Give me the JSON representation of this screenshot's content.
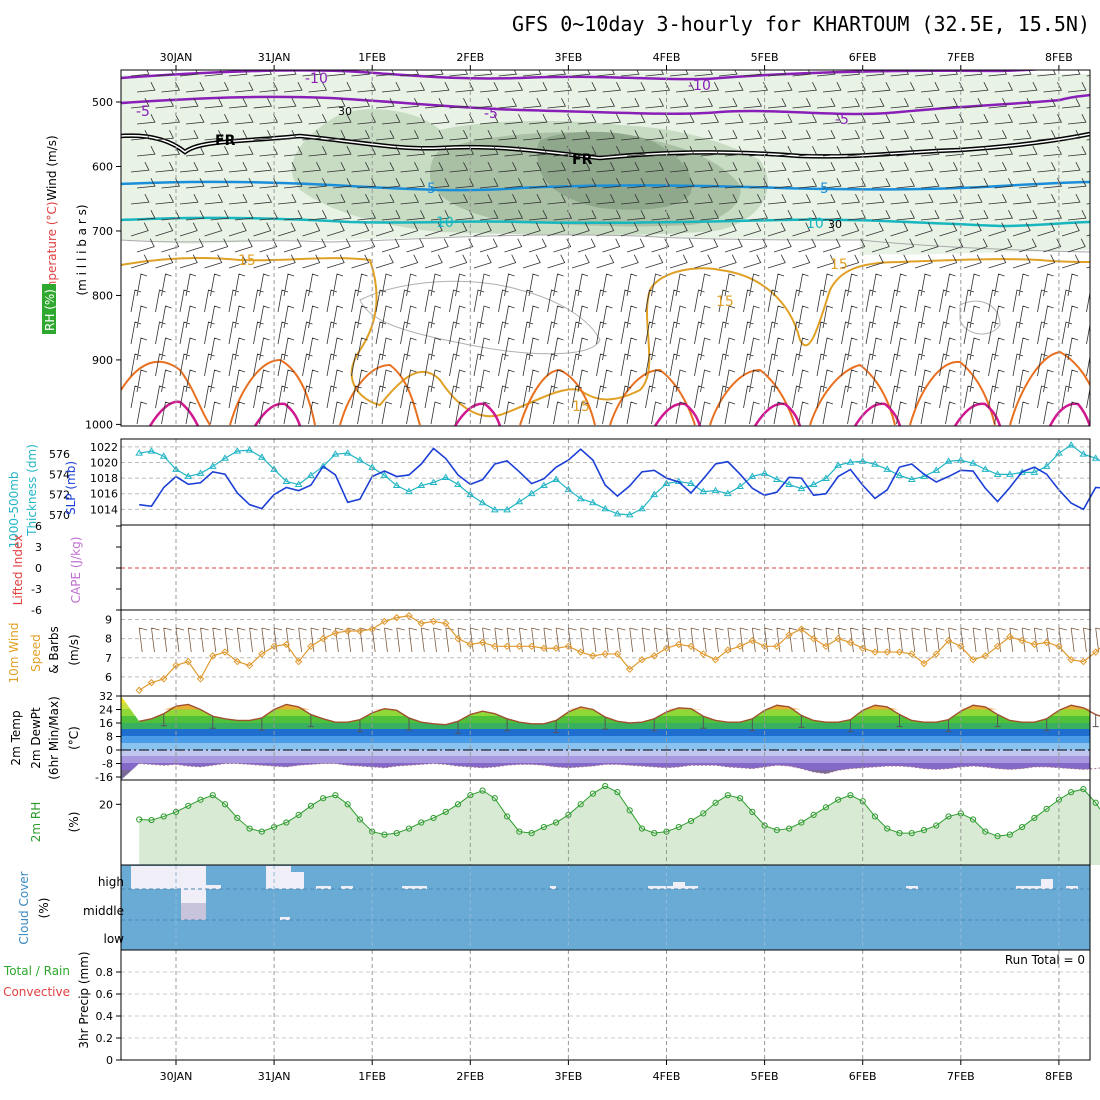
{
  "title": "GFS 0~10day 3-hourly for KHARTOUM (32.5E, 15.5N)",
  "date_labels": [
    "30JAN",
    "31JAN",
    "1FEB",
    "2FEB",
    "3FEB",
    "4FEB",
    "5FEB",
    "6FEB",
    "7FEB",
    "8FEB"
  ],
  "panels": {
    "upper": {
      "labels": [
        "Wind (m/s)",
        "Temperature (°C)",
        "RH (%)",
        "(m i l l i b a r s)"
      ],
      "pressure_levels": [
        500,
        600,
        700,
        800,
        900,
        1000
      ],
      "contour_labels": [
        "-10",
        "-5",
        "FR",
        "5",
        "10",
        "15",
        "30"
      ]
    },
    "slp": {
      "labels": [
        "1000-500mb",
        "Thickness (dm)",
        "SLP (mb)"
      ],
      "thickness_ticks": [
        570,
        572,
        574,
        576
      ],
      "slp_ticks": [
        1014,
        1016,
        1018,
        1020,
        1022
      ]
    },
    "cape": {
      "labels": [
        "Lifted Index",
        "CAPE (J/kg)"
      ],
      "ticks": [
        6,
        3,
        0,
        -3,
        -6
      ]
    },
    "wind10": {
      "labels": [
        "10m Wind",
        "Speed",
        "& Barbs",
        "(m/s)"
      ],
      "ticks": [
        6,
        7,
        8,
        9
      ]
    },
    "temp": {
      "labels": [
        "2m Temp",
        "2m DewPt",
        "(6hr Min/Max)",
        "(°C)"
      ],
      "ticks": [
        32,
        24,
        16,
        8,
        0,
        -8,
        -16
      ]
    },
    "rh": {
      "labels": [
        "2m RH",
        "(%)"
      ],
      "ticks": [
        20
      ]
    },
    "cloud": {
      "labels": [
        "Cloud Cover",
        "(%)"
      ],
      "levels": [
        "high",
        "middle",
        "low"
      ]
    },
    "precip": {
      "labels": [
        "Total / Rain",
        "Convective",
        "3hr Precip (mm)"
      ],
      "ticks": [
        0,
        0.2,
        0.4,
        0.6,
        0.8
      ],
      "run_total": "Run Total = 0"
    }
  },
  "colors": {
    "slp": "#1c3fd6",
    "thickness": "#22b5c5",
    "wind_speed": "#e09a30",
    "rh_line": "#2e9c2e",
    "cloud": "#6aabd6",
    "temp_line": "#a05030",
    "dewpt": "#a07090"
  },
  "chart_data": {
    "type": "line",
    "x_unit": "3-hourly steps from 29JAN 18Z (81 steps)",
    "series": [
      {
        "name": "SLP (mb)",
        "values": [
          1014.6,
          1014.4,
          1016.8,
          1018.2,
          1017.2,
          1017.4,
          1018.8,
          1018.5,
          1016.1,
          1014.6,
          1014.1,
          1015.9,
          1016.8,
          1016.4,
          1017.1,
          1019.5,
          1018.4,
          1014.9,
          1015.3,
          1018.2,
          1018.9,
          1018.2,
          1018.4,
          1019.8,
          1021.8,
          1020.5,
          1018.4,
          1017.2,
          1017.8,
          1019.8,
          1020.2,
          1018.8,
          1017.3,
          1017.9,
          1019.4,
          1020.3,
          1021.7,
          1020.3,
          1017.1,
          1015.7,
          1017.0,
          1018.8,
          1019.0,
          1018.0,
          1017.5,
          1016.1,
          1017.9,
          1019.8,
          1020.1,
          1018.5,
          1016.7,
          1015.8,
          1016.2,
          1018.1,
          1018.0,
          1015.8,
          1016.0,
          1018.2,
          1019.1,
          1017.1,
          1015.4,
          1016.5,
          1019.4,
          1019.8,
          1018.5,
          1017.5,
          1018.2,
          1019.0,
          1018.9,
          1016.7,
          1015.0,
          1016.8,
          1018.8,
          1019.4,
          1018.5,
          1016.5,
          1014.8,
          1014.0,
          1016.8,
          1016.7,
          1017.4
        ]
      },
      {
        "name": "1000-500mb Thickness (dm)",
        "values": [
          576.1,
          576.3,
          575.8,
          574.5,
          573.8,
          574.1,
          574.8,
          575.6,
          576.3,
          576.4,
          575.7,
          574.5,
          573.3,
          573.0,
          573.9,
          574.8,
          576.0,
          576.1,
          575.4,
          574.7,
          573.9,
          572.9,
          572.3,
          572.9,
          573.2,
          573.7,
          573.0,
          572.0,
          571.2,
          570.5,
          570.5,
          571.3,
          572.1,
          572.9,
          573.5,
          572.5,
          571.6,
          571.2,
          570.6,
          570.1,
          570.0,
          570.6,
          572.0,
          573.1,
          573.3,
          573.1,
          572.3,
          572.4,
          572.1,
          572.8,
          573.8,
          574.1,
          573.5,
          573.0,
          572.6,
          573.0,
          573.6,
          574.9,
          575.2,
          575.3,
          575.0,
          574.5,
          573.9,
          573.5,
          573.8,
          574.4,
          575.3,
          575.4,
          575.1,
          574.5,
          574.0,
          574.0,
          574.2,
          574.2,
          574.8,
          576.1,
          576.9,
          576.0,
          575.6,
          575.0,
          575.5
        ]
      },
      {
        "name": "10m Wind Speed (m/s)",
        "values": [
          5.3,
          5.7,
          5.9,
          6.6,
          6.8,
          5.9,
          7.1,
          7.3,
          6.8,
          6.6,
          7.2,
          7.6,
          7.7,
          6.8,
          7.6,
          8.0,
          8.3,
          8.4,
          8.4,
          8.5,
          8.9,
          9.1,
          9.2,
          8.8,
          8.9,
          8.8,
          8.0,
          7.7,
          7.8,
          7.6,
          7.6,
          7.6,
          7.6,
          7.5,
          7.5,
          7.6,
          7.3,
          7.1,
          7.2,
          7.2,
          6.4,
          6.9,
          7.1,
          7.5,
          7.7,
          7.6,
          7.2,
          6.9,
          7.4,
          7.6,
          7.9,
          7.6,
          7.6,
          8.2,
          8.5,
          8.0,
          7.6,
          8.0,
          7.8,
          7.5,
          7.3,
          7.3,
          7.3,
          7.2,
          6.7,
          7.2,
          7.9,
          7.6,
          6.9,
          7.1,
          7.6,
          8.1,
          7.9,
          7.7,
          7.8,
          7.6,
          6.9,
          6.8,
          7.3,
          7.9,
          7.0
        ]
      },
      {
        "name": "2m Temp (°C)",
        "values": [
          17,
          18.5,
          21.5,
          26,
          27,
          24,
          20,
          18.5,
          17.5,
          17.5,
          19,
          24,
          27,
          25.5,
          21,
          18.5,
          16.5,
          16.5,
          18,
          22,
          24.5,
          23.5,
          19,
          16.5,
          15.5,
          15,
          17,
          21,
          23,
          21.5,
          18.5,
          16.5,
          15.5,
          15.5,
          17.5,
          22.5,
          25.5,
          24,
          19.5,
          17,
          16,
          16.5,
          18.5,
          22.5,
          25,
          24.5,
          20,
          17.5,
          16.5,
          16.5,
          18.5,
          23.5,
          26.5,
          25.5,
          20.5,
          17.5,
          16.5,
          16.5,
          18,
          23.5,
          26.5,
          25.5,
          21,
          17.5,
          16.5,
          16.5,
          18,
          23,
          26.5,
          25.5,
          21,
          17.5,
          16.5,
          16.5,
          18.5,
          23.5,
          26.5,
          25,
          21,
          18.5,
          18
        ]
      },
      {
        "name": "2m DewPt (°C)",
        "values": [
          -8,
          -8.5,
          -9,
          -8.5,
          -9.5,
          -10,
          -9,
          -8,
          -8,
          -8.5,
          -9,
          -9.5,
          -10,
          -9,
          -8.5,
          -8,
          -8,
          -9,
          -9.5,
          -10,
          -10.5,
          -9.5,
          -9,
          -8.5,
          -8,
          -8.5,
          -9.5,
          -10,
          -10.5,
          -10,
          -9,
          -8.5,
          -8.5,
          -9,
          -10,
          -10.5,
          -10,
          -9.5,
          -8.5,
          -8.5,
          -9,
          -9.5,
          -10,
          -10.5,
          -10,
          -9,
          -9,
          -9,
          -10,
          -10.5,
          -11,
          -10,
          -9,
          -9.5,
          -11,
          -13,
          -14,
          -12,
          -11,
          -10.5,
          -10,
          -9.5,
          -9.5,
          -10,
          -11,
          -11.5,
          -11,
          -10,
          -9.5,
          -10,
          -11,
          -11.5,
          -11,
          -10,
          -10,
          -10.5,
          -11,
          -11.5,
          -11,
          -10,
          -10
        ]
      },
      {
        "name": "2m RH (%)",
        "values": [
          15,
          14.8,
          16,
          17.5,
          19.5,
          21.5,
          23,
          20,
          15.5,
          12,
          11,
          12.5,
          14,
          16.5,
          19.5,
          22,
          23,
          20,
          15,
          11,
          10,
          10.5,
          12,
          14,
          15.5,
          17.5,
          20,
          23,
          24.5,
          22,
          16,
          11,
          10.5,
          12.5,
          14,
          16.5,
          20,
          23.5,
          26,
          24,
          18,
          12,
          10.5,
          11,
          12.5,
          14.5,
          17,
          20.5,
          23,
          22,
          17.5,
          13,
          11.5,
          12,
          14,
          16.5,
          19,
          21.5,
          23,
          21,
          16,
          12,
          10.5,
          10.5,
          11.5,
          13,
          16,
          17,
          15,
          11,
          9.5,
          10,
          12.5,
          15.5,
          18.5,
          21.5,
          24,
          25,
          20.5,
          14.5,
          11
        ]
      }
    ],
    "ylim_slp": [
      1012,
      1023
    ],
    "ylim_thickness": [
      569,
      577.5
    ],
    "ylim_wind": [
      5,
      9.5
    ],
    "ylim_temp": [
      -20,
      32
    ],
    "ylim_rh": [
      0,
      28
    ],
    "ylim_precip": [
      0,
      1
    ],
    "precip_values": "all 0"
  }
}
